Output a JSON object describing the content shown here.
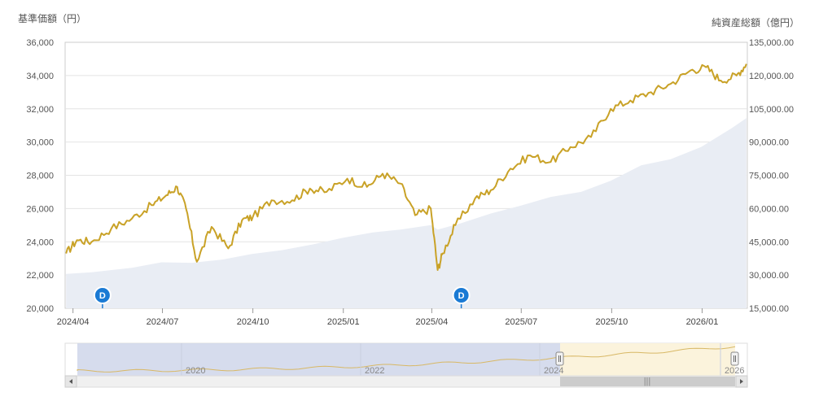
{
  "chart_data": {
    "type": "line",
    "left_axis_title": "基準価額（円）",
    "right_axis_title": "純資産総額（億円）",
    "left_ticks": [
      "20,000",
      "22,000",
      "24,000",
      "26,000",
      "28,000",
      "30,000",
      "32,000",
      "34,000",
      "36,000"
    ],
    "right_ticks": [
      "15,000.00",
      "30,000.00",
      "45,000.00",
      "60,000.00",
      "75,000.00",
      "90,000.00",
      "105,000.00",
      "120,000.00",
      "135,000.00"
    ],
    "x_ticks": [
      "2024/04",
      "2024/07",
      "2024/10",
      "2025/01",
      "2025/04",
      "2025/07",
      "2025/10",
      "2026/01"
    ],
    "ylim_left": [
      20000,
      36000
    ],
    "ylim_right": [
      15000,
      135000
    ],
    "series": [
      {
        "role": "nav_price",
        "axis": "left",
        "color": "#c9a227",
        "x": [
          "2024-03-25",
          "2024-04-05",
          "2024-04-20",
          "2024-05-10",
          "2024-05-31",
          "2024-06-20",
          "2024-07-05",
          "2024-07-16",
          "2024-07-25",
          "2024-08-05",
          "2024-08-20",
          "2024-09-06",
          "2024-09-20",
          "2024-10-01",
          "2024-10-20",
          "2024-11-10",
          "2024-11-28",
          "2024-12-15",
          "2025-01-05",
          "2025-01-25",
          "2025-02-10",
          "2025-02-28",
          "2025-03-15",
          "2025-03-31",
          "2025-04-07",
          "2025-04-12",
          "2025-04-25",
          "2025-05-15",
          "2025-05-31",
          "2025-06-20",
          "2025-07-10",
          "2025-07-31",
          "2025-08-20",
          "2025-09-10",
          "2025-09-30",
          "2025-10-20",
          "2025-11-10",
          "2025-11-30",
          "2025-12-20",
          "2026-01-05",
          "2026-01-20",
          "2026-02-05",
          "2026-02-15"
        ],
        "values": [
          23300,
          24100,
          24000,
          24800,
          25400,
          26200,
          26800,
          27300,
          26000,
          22800,
          24900,
          23600,
          25300,
          25500,
          26500,
          26500,
          27200,
          27000,
          27800,
          27300,
          28100,
          27500,
          25600,
          26000,
          22300,
          23300,
          25000,
          26600,
          27100,
          28400,
          29200,
          28800,
          29700,
          30300,
          32000,
          32500,
          33000,
          33500,
          34300,
          34500,
          33700,
          34000,
          34700
        ]
      },
      {
        "role": "net_assets",
        "axis": "right",
        "color": "#e8ecf3",
        "x": [
          "2024-03-25",
          "2024-04-20",
          "2024-05-31",
          "2024-06-30",
          "2024-07-31",
          "2024-08-31",
          "2024-09-30",
          "2024-10-31",
          "2024-11-30",
          "2024-12-31",
          "2025-01-31",
          "2025-02-28",
          "2025-03-31",
          "2025-04-07",
          "2025-04-30",
          "2025-05-31",
          "2025-06-30",
          "2025-07-31",
          "2025-08-31",
          "2025-09-30",
          "2025-10-31",
          "2025-11-30",
          "2025-12-31",
          "2026-01-31",
          "2026-02-15"
        ],
        "values": [
          30500,
          31500,
          33000,
          35000,
          36000,
          37000,
          39000,
          42000,
          44000,
          46500,
          48500,
          51000,
          52500,
          50000,
          54000,
          58000,
          61000,
          64500,
          68000,
          72500,
          79000,
          83000,
          88000,
          96000,
          100000
        ]
      }
    ]
  },
  "navigator": {
    "labels": [
      "2020",
      "2022",
      "2024",
      "2026"
    ],
    "scroll_grip": "|||"
  },
  "markers": [
    {
      "label": "D",
      "date": "2024-05-01"
    },
    {
      "label": "D",
      "date": "2025-05-01"
    }
  ]
}
